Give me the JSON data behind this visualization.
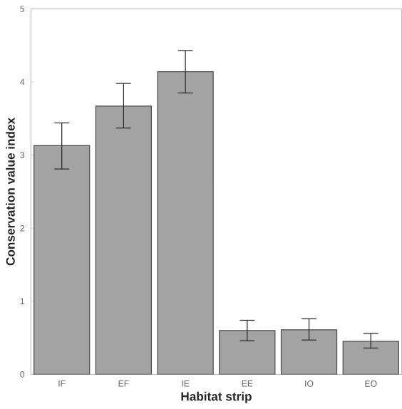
{
  "chart_data": {
    "type": "bar",
    "xlabel": "Habitat strip",
    "ylabel": "Conservation value index",
    "categories": [
      "IF",
      "EF",
      "IE",
      "EE",
      "IO",
      "EO"
    ],
    "values": [
      3.13,
      3.67,
      4.14,
      0.6,
      0.61,
      0.45
    ],
    "errors": [
      [
        2.81,
        3.44
      ],
      [
        3.37,
        3.98
      ],
      [
        3.85,
        4.43
      ],
      [
        0.46,
        0.74
      ],
      [
        0.47,
        0.76
      ],
      [
        0.36,
        0.56
      ]
    ],
    "color": "#a3a3a3",
    "ylim": [
      0,
      5
    ],
    "yticks": [
      0,
      1,
      2,
      3,
      4,
      5
    ],
    "grid": false
  }
}
